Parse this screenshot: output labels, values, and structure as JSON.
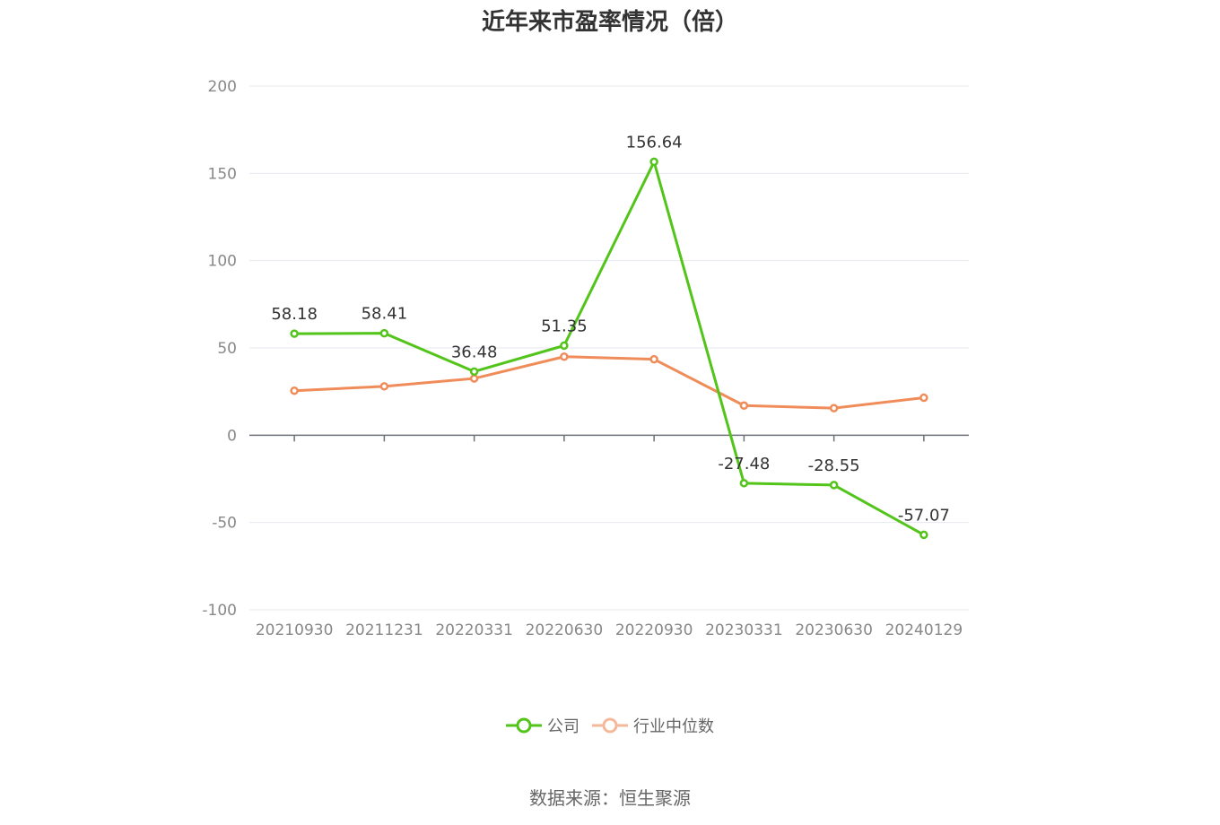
{
  "chart_data": {
    "type": "line",
    "title": "近年来市盈率情况（倍）",
    "categories": [
      "20210930",
      "20211231",
      "20220331",
      "20220630",
      "20220930",
      "20230331",
      "20230630",
      "20240129"
    ],
    "ylim": [
      -100,
      200
    ],
    "yticks": [
      200,
      150,
      100,
      50,
      0,
      -50,
      -100
    ],
    "grid": true,
    "legend_position": "bottom",
    "series": [
      {
        "name": "公司",
        "color": "#52c41a",
        "values": [
          58.18,
          58.41,
          36.48,
          51.35,
          156.64,
          -27.48,
          -28.55,
          -57.07
        ],
        "labels": [
          "58.18",
          "58.41",
          "36.48",
          "51.35",
          "156.64",
          "-27.48",
          "-28.55",
          "-57.07"
        ]
      },
      {
        "name": "行业中位数",
        "color": "#f08c5a",
        "values": [
          25.5,
          28,
          32.5,
          45,
          43.5,
          17,
          15.5,
          21.5
        ]
      }
    ]
  },
  "source": "数据来源：恒生聚源"
}
